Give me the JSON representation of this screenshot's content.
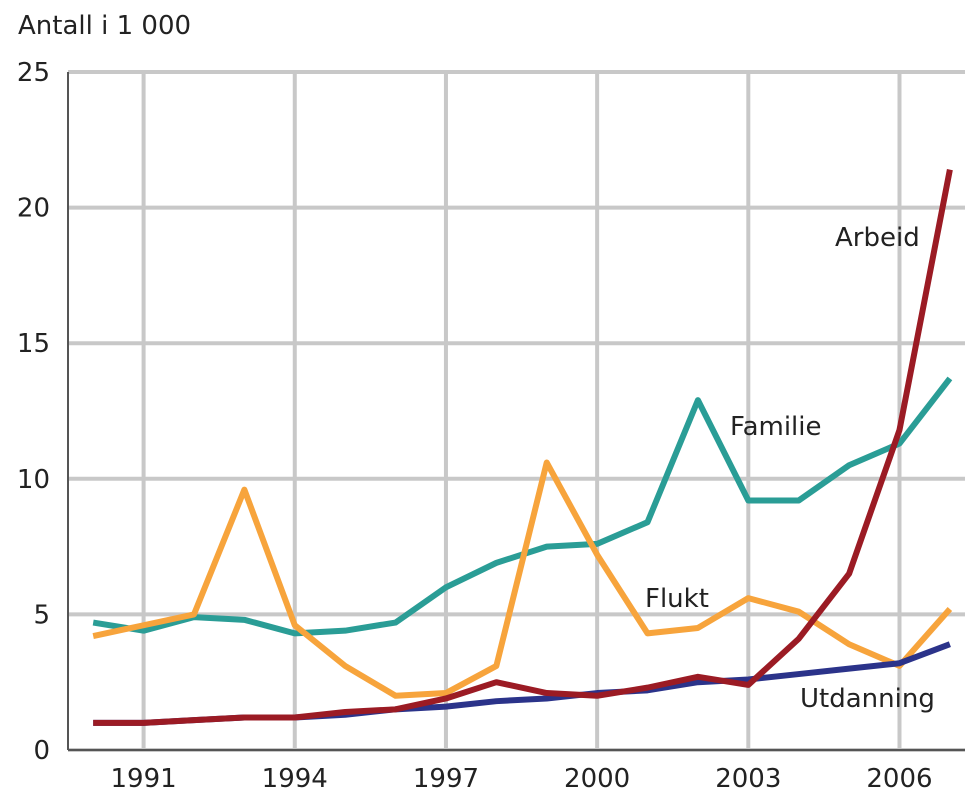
{
  "chart_data": {
    "type": "line",
    "y_label": "Antall i 1 000",
    "x": [
      1990,
      1991,
      1992,
      1993,
      1994,
      1995,
      1996,
      1997,
      1998,
      1999,
      2000,
      2001,
      2002,
      2003,
      2004,
      2005,
      2006,
      2007
    ],
    "xlim": [
      1989.5,
      2007.3
    ],
    "xticks": [
      1991,
      1994,
      1997,
      2000,
      2003,
      2006
    ],
    "ylim": [
      0,
      25
    ],
    "yticks": [
      0,
      5,
      10,
      15,
      20,
      25
    ],
    "grid": true,
    "series": [
      {
        "name": "Familie",
        "color": "#2a9d96",
        "values": [
          4.7,
          4.4,
          4.9,
          4.8,
          4.3,
          4.4,
          4.7,
          6.0,
          6.9,
          7.5,
          7.6,
          8.4,
          12.9,
          9.2,
          9.2,
          10.5,
          11.3,
          13.7
        ]
      },
      {
        "name": "Flukt",
        "color": "#f7a43c",
        "values": [
          4.2,
          4.6,
          5.0,
          9.6,
          4.6,
          3.1,
          2.0,
          2.1,
          3.1,
          10.6,
          7.2,
          4.3,
          4.5,
          5.6,
          5.1,
          3.9,
          3.1,
          5.2
        ]
      },
      {
        "name": "Utdanning",
        "color": "#2b338a",
        "values": [
          1.0,
          1.0,
          1.1,
          1.2,
          1.2,
          1.3,
          1.5,
          1.6,
          1.8,
          1.9,
          2.1,
          2.2,
          2.5,
          2.6,
          2.8,
          3.0,
          3.2,
          3.9
        ]
      },
      {
        "name": "Arbeid",
        "color": "#9b1b24",
        "values": [
          1.0,
          1.0,
          1.1,
          1.2,
          1.2,
          1.4,
          1.5,
          1.9,
          2.5,
          2.1,
          2.0,
          2.3,
          2.7,
          2.4,
          4.1,
          6.5,
          11.8,
          21.4
        ]
      }
    ]
  }
}
